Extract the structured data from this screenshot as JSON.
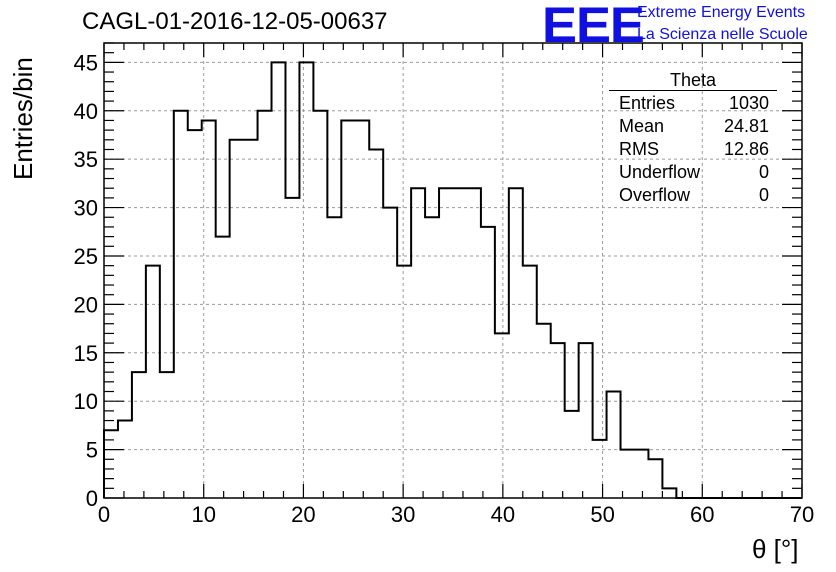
{
  "chart_data": {
    "type": "histogram",
    "title": "CAGL-01-2016-12-05-00637",
    "xlabel": "θ [°]",
    "ylabel": "Entries/bin",
    "xlim": [
      0,
      70
    ],
    "ylim": [
      0,
      47
    ],
    "xticks": [
      0,
      10,
      20,
      30,
      40,
      50,
      60,
      70
    ],
    "yticks": [
      0,
      5,
      10,
      15,
      20,
      25,
      30,
      35,
      40,
      45
    ],
    "grid": true,
    "bin_width": 1.4,
    "bin_start": 0,
    "values": [
      7,
      8,
      13,
      24,
      13,
      40,
      38,
      39,
      27,
      37,
      37,
      40,
      45,
      31,
      45,
      40,
      29,
      39,
      39,
      36,
      30,
      24,
      32,
      29,
      32,
      32,
      32,
      28,
      17,
      32,
      24,
      18,
      16,
      9,
      16,
      6,
      11,
      5,
      5,
      4,
      1,
      0,
      0,
      0,
      0,
      0,
      0,
      0,
      0,
      0
    ],
    "line_color": "#000000"
  },
  "stats_box": {
    "title": "Theta",
    "rows": [
      {
        "label": "Entries",
        "value": "1030"
      },
      {
        "label": "Mean",
        "value": "24.81"
      },
      {
        "label": "RMS",
        "value": "12.86"
      },
      {
        "label": "Underflow",
        "value": "0"
      },
      {
        "label": "Overflow",
        "value": "0"
      }
    ]
  },
  "logo": {
    "mark": "EEE",
    "line1": "Extreme Energy Events",
    "line2": "La Scienza nelle Scuole",
    "color": "#1010e0"
  }
}
